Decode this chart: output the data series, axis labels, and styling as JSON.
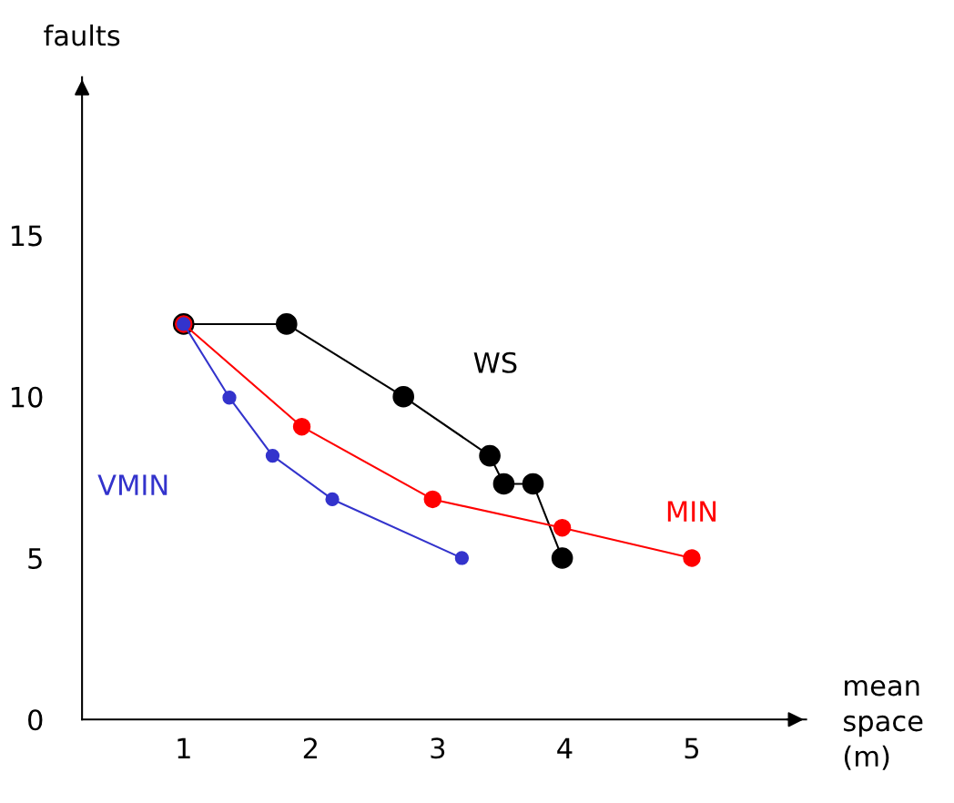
{
  "chart_data": {
    "type": "line",
    "xlabel": "mean\nspace\n(m)",
    "ylabel": "faults",
    "xlim": [
      0.2,
      5.9
    ],
    "ylim": [
      0,
      19.9
    ],
    "xticks": [
      1,
      2,
      3,
      4,
      5
    ],
    "yticks": [
      0,
      5,
      10,
      15
    ],
    "grid": false,
    "legend": false,
    "marker": "circle",
    "line_style": "solid",
    "series": [
      {
        "name": "WS",
        "color": "#000000",
        "x": [
          1,
          1.81,
          2.73,
          3.41,
          3.52,
          3.75,
          3.98
        ],
        "values": [
          12.25,
          12.25,
          10.0,
          8.17,
          7.3,
          7.3,
          5.0
        ]
      },
      {
        "name": "MIN",
        "color": "#ff0000",
        "x": [
          1,
          1.93,
          2.96,
          3.98,
          5.0
        ],
        "values": [
          12.25,
          9.07,
          6.82,
          5.94,
          5.0
        ]
      },
      {
        "name": "VMIN",
        "color": "#3333cc",
        "x": [
          1,
          1.36,
          1.7,
          2.17,
          3.19
        ],
        "values": [
          12.25,
          9.97,
          8.17,
          6.82,
          5.0
        ]
      }
    ]
  }
}
